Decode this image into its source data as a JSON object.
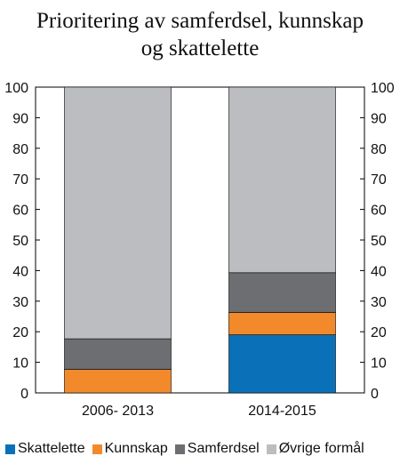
{
  "chart_data": {
    "type": "bar",
    "stacked": true,
    "title": "Prioritering av samferdsel, kunnskap og skattelette",
    "title_lines": [
      "Prioritering av samferdsel, kunnskap",
      "og skattelette"
    ],
    "categories": [
      "2006- 2013",
      "2014-2015"
    ],
    "series": [
      {
        "name": "Skattelette",
        "color": "#0a70b8",
        "values": [
          0,
          19
        ]
      },
      {
        "name": "Kunnskap",
        "color": "#f28a2c",
        "values": [
          7.7,
          7.3
        ]
      },
      {
        "name": "Samferdsel",
        "color": "#6d6e71",
        "values": [
          10,
          13
        ]
      },
      {
        "name": "Øvrige formål",
        "color": "#bcbdc0",
        "values": [
          82.3,
          60.7
        ]
      }
    ],
    "ylim": [
      0,
      100
    ],
    "yticks": [
      "0",
      "10",
      "20",
      "30",
      "40",
      "50",
      "60",
      "70",
      "80",
      "90",
      "100"
    ],
    "secondary_yaxis": true,
    "legend_position": "bottom",
    "grid": false
  }
}
